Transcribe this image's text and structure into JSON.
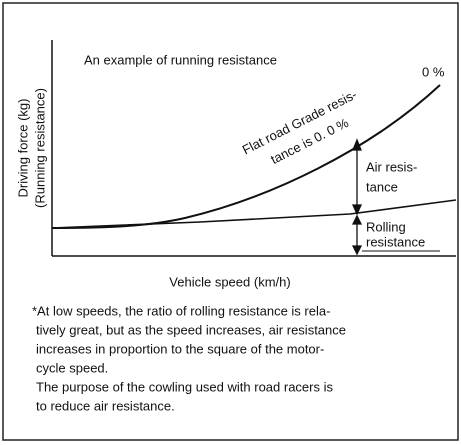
{
  "title": "An example of running resistance",
  "y_axis_label": [
    "Driving force (kg)",
    "(Running resistance)"
  ],
  "x_axis_label": "Vehicle speed (km/h)",
  "curve_label": [
    "Flat road Grade resis-",
    "tance is 0. 0 %"
  ],
  "curve_end_label": "0 %",
  "air_label": [
    "Air resis-",
    "tance"
  ],
  "rolling_label": [
    "Rolling",
    "resistance"
  ],
  "notes": [
    "*At low speeds, the ratio of rolling resistance is rela-",
    "tively great, but as the speed increases, air resistance",
    "increases in proportion to the square of the motor-",
    "cycle speed.",
    "The purpose of the cowling used with road racers is",
    "to reduce air resistance."
  ]
}
